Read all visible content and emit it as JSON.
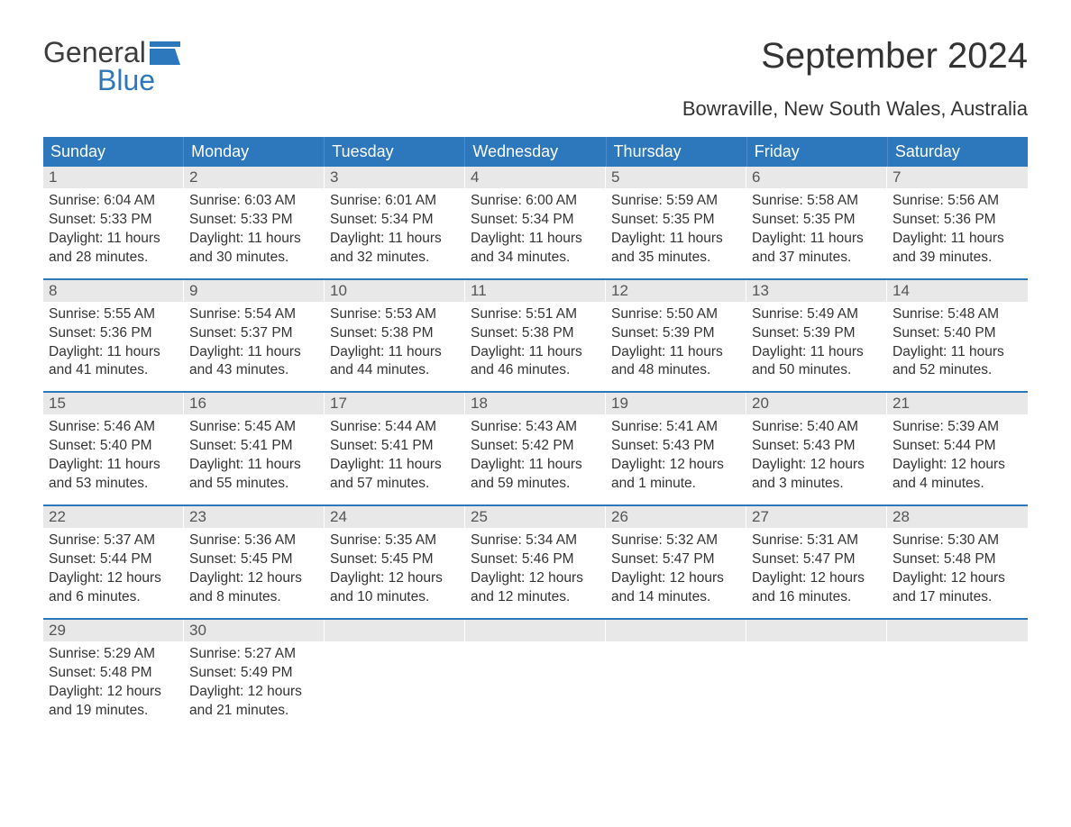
{
  "brand": {
    "word1": "General",
    "word2": "Blue"
  },
  "title": "September 2024",
  "subtitle": "Bowraville, New South Wales, Australia",
  "colors": {
    "header_bg": "#2d77bd",
    "header_text": "#ffffff",
    "daynum_bg": "#e8e8e8",
    "daynum_text": "#555555",
    "body_text": "#333333",
    "week_border": "#2d77bd",
    "pageand_blue": "#2d77bd",
    "brand_gray": "#3d3d3d",
    "page_bg": "#ffffff"
  },
  "typography": {
    "title_fontsize": 40,
    "subtitle_fontsize": 22,
    "weekday_fontsize": 18,
    "daynum_fontsize": 17,
    "body_fontsize": 15.5,
    "logo_fontsize": 32
  },
  "weekdays": [
    "Sunday",
    "Monday",
    "Tuesday",
    "Wednesday",
    "Thursday",
    "Friday",
    "Saturday"
  ],
  "labels": {
    "sunrise": "Sunrise: ",
    "sunset": "Sunset: ",
    "daylight": "Daylight: "
  },
  "weeks": [
    [
      {
        "day": "1",
        "sunrise": "6:04 AM",
        "sunset": "5:33 PM",
        "daylight": "11 hours and 28 minutes."
      },
      {
        "day": "2",
        "sunrise": "6:03 AM",
        "sunset": "5:33 PM",
        "daylight": "11 hours and 30 minutes."
      },
      {
        "day": "3",
        "sunrise": "6:01 AM",
        "sunset": "5:34 PM",
        "daylight": "11 hours and 32 minutes."
      },
      {
        "day": "4",
        "sunrise": "6:00 AM",
        "sunset": "5:34 PM",
        "daylight": "11 hours and 34 minutes."
      },
      {
        "day": "5",
        "sunrise": "5:59 AM",
        "sunset": "5:35 PM",
        "daylight": "11 hours and 35 minutes."
      },
      {
        "day": "6",
        "sunrise": "5:58 AM",
        "sunset": "5:35 PM",
        "daylight": "11 hours and 37 minutes."
      },
      {
        "day": "7",
        "sunrise": "5:56 AM",
        "sunset": "5:36 PM",
        "daylight": "11 hours and 39 minutes."
      }
    ],
    [
      {
        "day": "8",
        "sunrise": "5:55 AM",
        "sunset": "5:36 PM",
        "daylight": "11 hours and 41 minutes."
      },
      {
        "day": "9",
        "sunrise": "5:54 AM",
        "sunset": "5:37 PM",
        "daylight": "11 hours and 43 minutes."
      },
      {
        "day": "10",
        "sunrise": "5:53 AM",
        "sunset": "5:38 PM",
        "daylight": "11 hours and 44 minutes."
      },
      {
        "day": "11",
        "sunrise": "5:51 AM",
        "sunset": "5:38 PM",
        "daylight": "11 hours and 46 minutes."
      },
      {
        "day": "12",
        "sunrise": "5:50 AM",
        "sunset": "5:39 PM",
        "daylight": "11 hours and 48 minutes."
      },
      {
        "day": "13",
        "sunrise": "5:49 AM",
        "sunset": "5:39 PM",
        "daylight": "11 hours and 50 minutes."
      },
      {
        "day": "14",
        "sunrise": "5:48 AM",
        "sunset": "5:40 PM",
        "daylight": "11 hours and 52 minutes."
      }
    ],
    [
      {
        "day": "15",
        "sunrise": "5:46 AM",
        "sunset": "5:40 PM",
        "daylight": "11 hours and 53 minutes."
      },
      {
        "day": "16",
        "sunrise": "5:45 AM",
        "sunset": "5:41 PM",
        "daylight": "11 hours and 55 minutes."
      },
      {
        "day": "17",
        "sunrise": "5:44 AM",
        "sunset": "5:41 PM",
        "daylight": "11 hours and 57 minutes."
      },
      {
        "day": "18",
        "sunrise": "5:43 AM",
        "sunset": "5:42 PM",
        "daylight": "11 hours and 59 minutes."
      },
      {
        "day": "19",
        "sunrise": "5:41 AM",
        "sunset": "5:43 PM",
        "daylight": "12 hours and 1 minute."
      },
      {
        "day": "20",
        "sunrise": "5:40 AM",
        "sunset": "5:43 PM",
        "daylight": "12 hours and 3 minutes."
      },
      {
        "day": "21",
        "sunrise": "5:39 AM",
        "sunset": "5:44 PM",
        "daylight": "12 hours and 4 minutes."
      }
    ],
    [
      {
        "day": "22",
        "sunrise": "5:37 AM",
        "sunset": "5:44 PM",
        "daylight": "12 hours and 6 minutes."
      },
      {
        "day": "23",
        "sunrise": "5:36 AM",
        "sunset": "5:45 PM",
        "daylight": "12 hours and 8 minutes."
      },
      {
        "day": "24",
        "sunrise": "5:35 AM",
        "sunset": "5:45 PM",
        "daylight": "12 hours and 10 minutes."
      },
      {
        "day": "25",
        "sunrise": "5:34 AM",
        "sunset": "5:46 PM",
        "daylight": "12 hours and 12 minutes."
      },
      {
        "day": "26",
        "sunrise": "5:32 AM",
        "sunset": "5:47 PM",
        "daylight": "12 hours and 14 minutes."
      },
      {
        "day": "27",
        "sunrise": "5:31 AM",
        "sunset": "5:47 PM",
        "daylight": "12 hours and 16 minutes."
      },
      {
        "day": "28",
        "sunrise": "5:30 AM",
        "sunset": "5:48 PM",
        "daylight": "12 hours and 17 minutes."
      }
    ],
    [
      {
        "day": "29",
        "sunrise": "5:29 AM",
        "sunset": "5:48 PM",
        "daylight": "12 hours and 19 minutes."
      },
      {
        "day": "30",
        "sunrise": "5:27 AM",
        "sunset": "5:49 PM",
        "daylight": "12 hours and 21 minutes."
      },
      {
        "day": "",
        "sunrise": "",
        "sunset": "",
        "daylight": ""
      },
      {
        "day": "",
        "sunrise": "",
        "sunset": "",
        "daylight": ""
      },
      {
        "day": "",
        "sunrise": "",
        "sunset": "",
        "daylight": ""
      },
      {
        "day": "",
        "sunrise": "",
        "sunset": "",
        "daylight": ""
      },
      {
        "day": "",
        "sunrise": "",
        "sunset": "",
        "daylight": ""
      }
    ]
  ]
}
